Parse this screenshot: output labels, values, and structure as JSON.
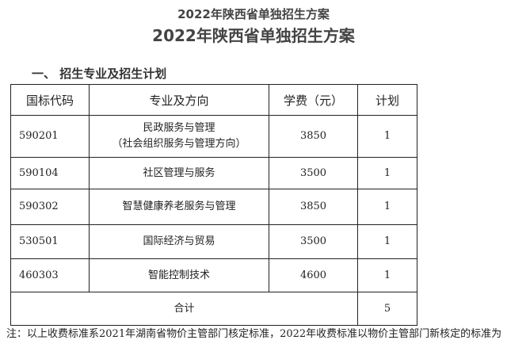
{
  "title_small": "2022年陕西省单独招生方案",
  "title_large": "2022年陕西省单独招生方案",
  "section": "一、  招生专业及招生计划",
  "table": {
    "headers": [
      "国标代码",
      "专业及方向",
      "学费（元）",
      "计划"
    ],
    "rows": [
      {
        "code": "590201",
        "major": "民政服务与管理",
        "sub": "（社会组织服务与管理方向）",
        "fee": "3850",
        "plan": "1"
      },
      {
        "code": "590104",
        "major": "社区管理与服务",
        "sub": "",
        "fee": "3500",
        "plan": "1"
      },
      {
        "code": "590302",
        "major": "智慧健康养老服务与管理",
        "sub": "",
        "fee": "3850",
        "plan": "1"
      },
      {
        "code": "530501",
        "major": "国际经济与贸易",
        "sub": "",
        "fee": "3500",
        "plan": "1"
      },
      {
        "code": "460303",
        "major": "智能控制技术",
        "sub": "",
        "fee": "4600",
        "plan": "1"
      }
    ],
    "total_label": "合计",
    "total_value": "5"
  },
  "note": "注：以上收费标准系2021年湖南省物价主管部门核定标准，2022年收费标准以物价主管部门新核定的标准为"
}
